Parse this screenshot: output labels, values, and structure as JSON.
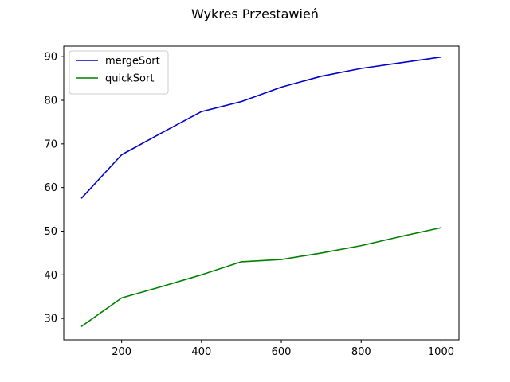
{
  "chart_data": {
    "type": "line",
    "title": "Wykres Przestawień",
    "xlabel": "",
    "ylabel": "",
    "x": [
      100,
      200,
      300,
      400,
      500,
      600,
      700,
      800,
      900,
      1000
    ],
    "xlim": [
      55,
      1045
    ],
    "ylim": [
      25.1,
      92.4
    ],
    "xticks": [
      200,
      400,
      600,
      800,
      1000
    ],
    "yticks": [
      30,
      40,
      50,
      60,
      70,
      80,
      90
    ],
    "grid": false,
    "legend_position": "top-left",
    "series": [
      {
        "name": "mergeSort",
        "color": "#0000cc",
        "values": [
          57.6,
          67.5,
          72.5,
          77.4,
          79.7,
          83.0,
          85.5,
          87.3,
          88.6,
          89.9
        ]
      },
      {
        "name": "quickSort",
        "color": "#008000",
        "values": [
          28.2,
          34.7,
          37.3,
          40.0,
          43.0,
          43.5,
          45.0,
          46.7,
          48.8,
          50.8
        ]
      }
    ]
  }
}
